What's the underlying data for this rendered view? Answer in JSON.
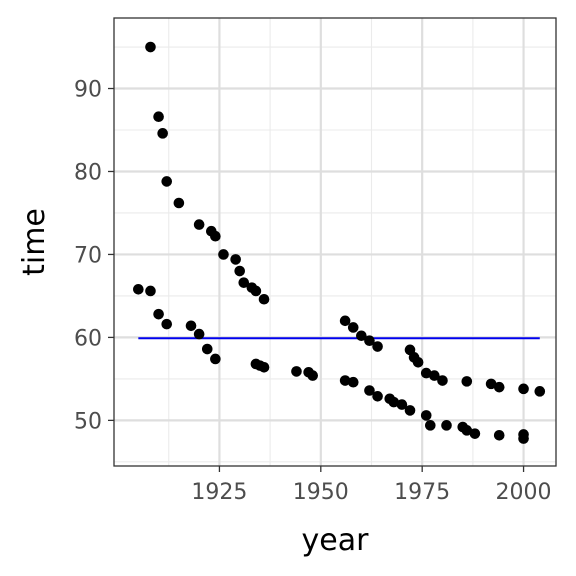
{
  "chart_data": {
    "type": "scatter",
    "xlabel": "year",
    "ylabel": "time",
    "xlim": [
      1899,
      2008
    ],
    "ylim": [
      44.5,
      98.5
    ],
    "x_ticks": [
      1925,
      1950,
      1975,
      2000
    ],
    "x_minor_ticks": [
      1912.5,
      1937.5,
      1962.5,
      1987.5
    ],
    "y_ticks": [
      50,
      60,
      70,
      80,
      90
    ],
    "y_minor_ticks": [
      45,
      55,
      65,
      75,
      85,
      95
    ],
    "grid": true,
    "point_color": "#000000",
    "series": [
      {
        "values": [
          [
            1905,
            65.8
          ],
          [
            1908,
            65.6
          ],
          [
            1910,
            62.8
          ],
          [
            1912,
            61.6
          ],
          [
            1918,
            61.4
          ],
          [
            1920,
            60.4
          ],
          [
            1922,
            58.6
          ],
          [
            1924,
            57.4
          ],
          [
            1934,
            56.8
          ],
          [
            1935,
            56.6
          ],
          [
            1936,
            56.4
          ],
          [
            1944,
            55.9
          ],
          [
            1947,
            55.8
          ],
          [
            1948,
            55.4
          ],
          [
            1956,
            54.8
          ],
          [
            1958,
            54.6
          ],
          [
            1962,
            53.6
          ],
          [
            1964,
            52.9
          ],
          [
            1967,
            52.6
          ],
          [
            1968,
            52.2
          ],
          [
            1970,
            51.9
          ],
          [
            1972,
            51.2
          ],
          [
            1976,
            50.6
          ],
          [
            1977,
            49.4
          ],
          [
            1981,
            49.4
          ],
          [
            1985,
            49.2
          ],
          [
            1986,
            48.8
          ],
          [
            1988,
            48.4
          ],
          [
            1994,
            48.2
          ],
          [
            2000,
            48.3
          ],
          [
            2000,
            47.8
          ],
          [
            1908,
            95.0
          ],
          [
            1910,
            86.6
          ],
          [
            1911,
            84.6
          ],
          [
            1912,
            78.8
          ],
          [
            1915,
            76.2
          ],
          [
            1920,
            73.6
          ],
          [
            1923,
            72.8
          ],
          [
            1924,
            72.2
          ],
          [
            1926,
            70.0
          ],
          [
            1929,
            69.4
          ],
          [
            1930,
            68.0
          ],
          [
            1931,
            66.6
          ],
          [
            1933,
            66.0
          ],
          [
            1934,
            65.6
          ],
          [
            1936,
            64.6
          ],
          [
            1956,
            62.0
          ],
          [
            1958,
            61.2
          ],
          [
            1960,
            60.2
          ],
          [
            1962,
            59.6
          ],
          [
            1964,
            58.9
          ],
          [
            1972,
            58.5
          ],
          [
            1973,
            57.6
          ],
          [
            1974,
            57.0
          ],
          [
            1976,
            55.7
          ],
          [
            1978,
            55.4
          ],
          [
            1980,
            54.8
          ],
          [
            1986,
            54.7
          ],
          [
            1992,
            54.4
          ],
          [
            1994,
            54.0
          ],
          [
            2000,
            53.8
          ],
          [
            2004,
            53.5
          ]
        ]
      }
    ],
    "reference_line": {
      "x": [
        1905,
        2004
      ],
      "y": [
        59.9,
        59.9
      ],
      "color": "#0000ee"
    }
  }
}
